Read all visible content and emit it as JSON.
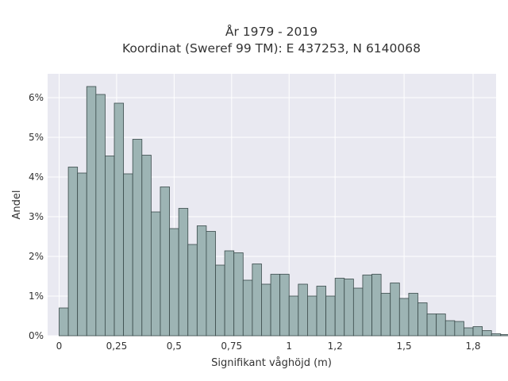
{
  "chart_data": {
    "type": "bar",
    "title": "År 1979 - 2019",
    "subtitle": "Koordinat (Sweref 99 TM): E 437253, N 6140068",
    "xlabel": "Signifikant våghöjd (m)",
    "ylabel": "Andel",
    "xlim": [
      -0.05,
      1.9
    ],
    "ylim": [
      0,
      6.6
    ],
    "x_ticks": [
      {
        "value": 0,
        "label": "0"
      },
      {
        "value": 0.25,
        "label": "0,25"
      },
      {
        "value": 0.5,
        "label": "0,5"
      },
      {
        "value": 0.75,
        "label": "0,75"
      },
      {
        "value": 1,
        "label": "1"
      },
      {
        "value": 1.2,
        "label": "1,2"
      },
      {
        "value": 1.5,
        "label": "1,5"
      },
      {
        "value": 1.8,
        "label": "1,8"
      }
    ],
    "y_ticks": [
      {
        "value": 0,
        "label": "0%"
      },
      {
        "value": 1,
        "label": "1%"
      },
      {
        "value": 2,
        "label": "2%"
      },
      {
        "value": 3,
        "label": "3%"
      },
      {
        "value": 4,
        "label": "4%"
      },
      {
        "value": 5,
        "label": "5%"
      },
      {
        "value": 6,
        "label": "6%"
      }
    ],
    "bin_width": 0.04,
    "bin_start": 0.0,
    "values": [
      0.7,
      4.25,
      4.1,
      6.28,
      6.08,
      4.53,
      5.86,
      4.08,
      4.95,
      4.55,
      3.12,
      3.75,
      2.7,
      3.21,
      2.3,
      2.77,
      2.63,
      1.78,
      2.14,
      2.09,
      1.4,
      1.81,
      1.3,
      1.55,
      1.55,
      1.0,
      1.3,
      1.0,
      1.25,
      1.0,
      1.45,
      1.43,
      1.2,
      1.53,
      1.55,
      1.07,
      1.33,
      0.94,
      1.07,
      0.83,
      0.55,
      0.55,
      0.38,
      0.36,
      0.2,
      0.23,
      0.13,
      0.05,
      0.03,
      0.01
    ],
    "grid": true,
    "colors": {
      "plot_background": "#e9e9f1",
      "bar_fill": "#9db4b4",
      "bar_stroke": "#3a4a4a",
      "grid": "#ffffff"
    }
  }
}
